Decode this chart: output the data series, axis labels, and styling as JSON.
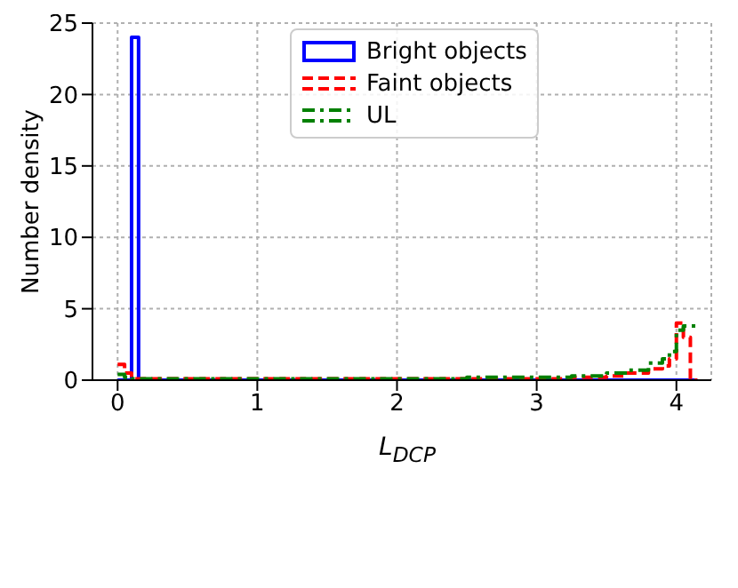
{
  "chart_data": {
    "type": "histogram",
    "xlabel": "L$_{DCP}$",
    "ylabel": "Number density",
    "bins": [
      0,
      0.05,
      0.1,
      0.15,
      0.5,
      1,
      1.5,
      2,
      2.5,
      3,
      3.25,
      3.5,
      3.65,
      3.8,
      3.9,
      3.95,
      4.0,
      4.05,
      4.1,
      4.15
    ],
    "series": [
      {
        "name": "Bright objects",
        "color": "#0000ff",
        "line_style": "solid",
        "values": [
          0,
          0,
          24,
          0,
          0,
          0,
          0,
          0,
          0,
          0,
          0,
          0,
          0,
          0,
          0,
          0,
          0,
          0,
          0
        ]
      },
      {
        "name": "Faint objects",
        "color": "#ff0000",
        "line_style": "dashed",
        "values": [
          1.1,
          0.5,
          0.1,
          0.1,
          0.1,
          0.1,
          0.1,
          0.1,
          0.1,
          0.1,
          0.2,
          0.3,
          0.5,
          0.8,
          1.0,
          1.5,
          4.0,
          3.0,
          0
        ]
      },
      {
        "name": "UL",
        "color": "#008000",
        "line_style": "dashdot",
        "values": [
          0.4,
          0.2,
          0.1,
          0.1,
          0.1,
          0.1,
          0.1,
          0.1,
          0.2,
          0.2,
          0.3,
          0.5,
          0.7,
          1.2,
          1.5,
          2.0,
          3.5,
          3.8,
          3.8
        ]
      }
    ],
    "xlim": [
      -0.18,
      4.25
    ],
    "xticks": [
      0,
      1,
      2,
      3,
      4
    ],
    "ylim": [
      0,
      25
    ],
    "yticks": [
      0,
      5,
      10,
      15,
      20,
      25
    ],
    "grid": true,
    "legend": "top"
  }
}
